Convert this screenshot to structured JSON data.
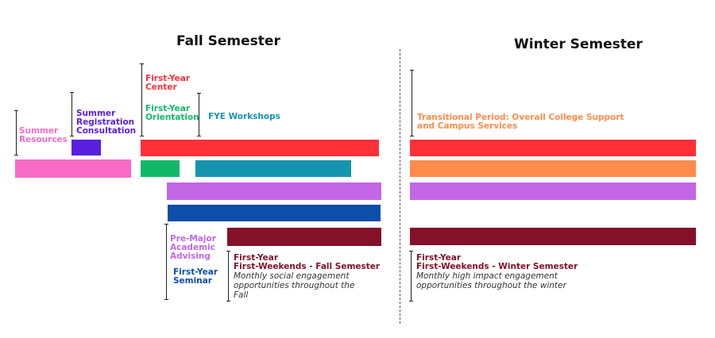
{
  "headings": {
    "fall": "Fall Semester",
    "winter": "Winter Semester"
  },
  "labels": {
    "summer_resources": "Summer\nResources",
    "summer_registration": "Summer\nRegistration\nConsultation",
    "first_year_center": "First-Year\nCenter",
    "first_year_orientation": "First-Year\nOrientation",
    "fye_workshops": "FYE Workshops",
    "pre_major": "Pre-Major\nAcademic\nAdvising",
    "first_year_seminar": "First-Year\nSeminar",
    "transitional": "Transitional Period: Overall College Support\nand Campus Services"
  },
  "fall_weekends": {
    "title": "First-Year\nFirst-Weekends - Fall Semester",
    "desc": "Monthly social engagement\nopportunities throughout the\nFall"
  },
  "winter_weekends": {
    "title": "First-Year\nFirst-Weekends - Winter Semester",
    "desc": "Monthly high impact engagement\nopportunities throughout the winter"
  },
  "colors": {
    "summer_resources": "#f76bc6",
    "summer_registration": "#5a1ee0",
    "first_year_center": "#ff3038",
    "first_year_orientation": "#12b86a",
    "fye_workshops": "#1595ad",
    "transitional": "#ff8c4a",
    "pre_major": "#c266e6",
    "first_year_seminar": "#0c4ea8",
    "first_weekends": "#841029"
  }
}
